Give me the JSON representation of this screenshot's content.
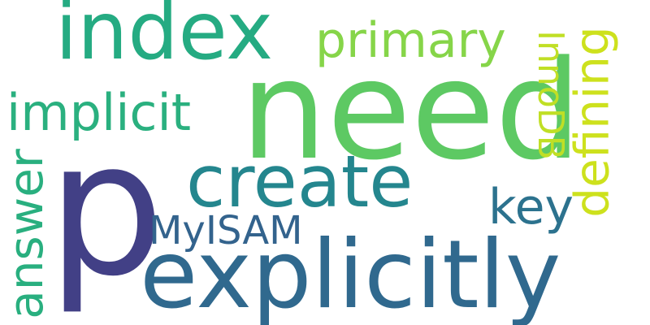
{
  "words": [
    {
      "key": "p",
      "text": "p",
      "color": "#424086",
      "rotated": false
    },
    {
      "key": "need",
      "text": "need",
      "color": "#5dc963",
      "rotated": false
    },
    {
      "key": "explicitly",
      "text": "explicitly",
      "color": "#30698e",
      "rotated": false
    },
    {
      "key": "index",
      "text": "index",
      "color": "#25ab82",
      "rotated": false
    },
    {
      "key": "create",
      "text": "create",
      "color": "#24868e",
      "rotated": false
    },
    {
      "key": "primary",
      "text": "primary",
      "color": "#86d549",
      "rotated": false
    },
    {
      "key": "implicit",
      "text": "implicit",
      "color": "#2ab07f",
      "rotated": false
    },
    {
      "key": "answer",
      "text": "answer",
      "color": "#29af7f",
      "rotated": true
    },
    {
      "key": "defining",
      "text": "defining",
      "color": "#cde11d",
      "rotated": true
    },
    {
      "key": "InnoDB",
      "text": "InnoDB",
      "color": "#c0df25",
      "rotated": true
    },
    {
      "key": "key",
      "text": "key",
      "color": "#2c728e",
      "rotated": false
    },
    {
      "key": "MyISAM",
      "text": "MyISAM",
      "color": "#33638d",
      "rotated": false
    }
  ]
}
